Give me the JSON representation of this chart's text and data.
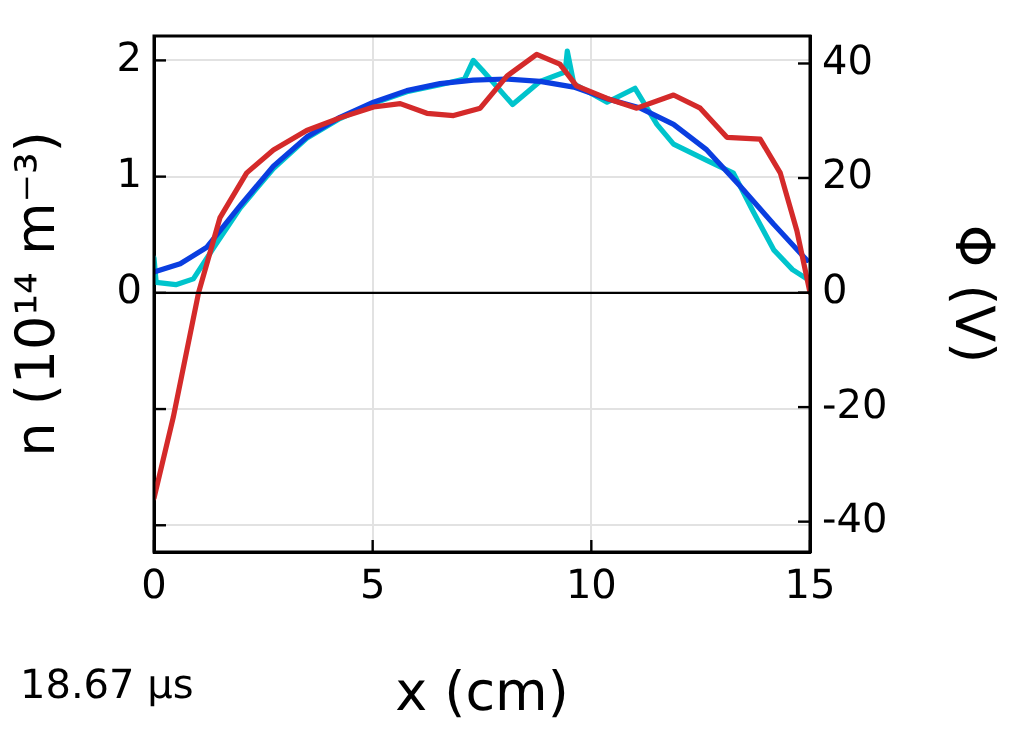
{
  "chart_data": {
    "type": "line",
    "xlabel": "x (cm)",
    "ylabel": "n (10¹⁴ m⁻³)",
    "y2label": "Φ (V)",
    "annotations": [
      "18.67 μs"
    ],
    "xlim": [
      0,
      15
    ],
    "xticks": [
      0,
      5,
      10,
      15
    ],
    "ylim": [
      -2.23,
      2.21
    ],
    "yticks": [
      {
        "value": -2,
        "label": null
      },
      {
        "value": -1,
        "label": null
      },
      0,
      1,
      2
    ],
    "y2lim": [
      -45.3,
      44.8
    ],
    "y2ticks": [
      -40,
      -20,
      0,
      20,
      40
    ],
    "grid": true,
    "legend": false,
    "marker": "none",
    "line_style": "solid",
    "ref_lines": [
      {
        "axis": "y",
        "value": 0,
        "label": null,
        "color": "#000000"
      }
    ],
    "series": [
      {
        "color": "#00c4cc",
        "x": [
          0,
          0.05,
          0.5,
          0.9,
          1.35,
          1.97,
          2.73,
          3.49,
          4.25,
          5.02,
          5.78,
          6.54,
          7.1,
          7.3,
          7.5,
          8.2,
          8.83,
          9.4,
          9.45,
          9.6,
          10.36,
          11,
          11.5,
          11.88,
          12.64,
          13.25,
          13.7,
          14.17,
          14.6,
          14.93
        ],
        "values": [
          0.3,
          0.09,
          0.07,
          0.12,
          0.38,
          0.73,
          1.07,
          1.33,
          1.5,
          1.63,
          1.73,
          1.79,
          1.84,
          2.0,
          1.92,
          1.62,
          1.82,
          1.9,
          2.08,
          1.8,
          1.64,
          1.76,
          1.45,
          1.28,
          1.14,
          1.03,
          0.7,
          0.37,
          0.2,
          0.12
        ]
      },
      {
        "color": "#0a3ee0",
        "x": [
          0,
          0.6,
          1.2,
          1.97,
          2.73,
          3.49,
          4.25,
          5.02,
          5.78,
          6.54,
          7.3,
          8.07,
          8.83,
          9.6,
          10.36,
          11.12,
          11.88,
          12.64,
          13.4,
          14.17,
          14.93
        ],
        "values": [
          0.18,
          0.25,
          0.39,
          0.75,
          1.09,
          1.34,
          1.51,
          1.64,
          1.74,
          1.8,
          1.83,
          1.84,
          1.82,
          1.77,
          1.67,
          1.59,
          1.45,
          1.23,
          0.92,
          0.59,
          0.28
        ]
      },
      {
        "color": "#d42a2a",
        "axis": "y2",
        "x": [
          0,
          0.44,
          1.02,
          1.51,
          2.12,
          2.73,
          3.49,
          4.25,
          5.02,
          5.63,
          6.24,
          6.85,
          7.46,
          8.07,
          8.75,
          9.28,
          9.66,
          10.36,
          11.04,
          11.88,
          12.49,
          13.1,
          13.86,
          14.32,
          14.7,
          15
        ],
        "values": [
          -35.9,
          -21.8,
          0,
          13.1,
          20.9,
          24.9,
          28.3,
          30.5,
          32.4,
          33,
          31.3,
          30.9,
          32.2,
          37.8,
          41.6,
          39.9,
          36.1,
          33.9,
          32.2,
          34.5,
          32.2,
          27.1,
          26.8,
          20.9,
          10.8,
          0
        ]
      }
    ]
  }
}
